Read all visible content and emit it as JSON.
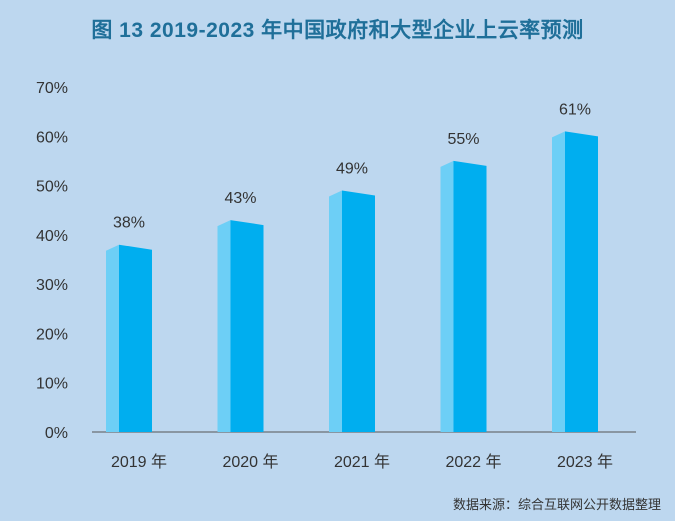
{
  "chart_data": {
    "type": "bar",
    "title": "图 13  2019-2023 年中国政府和大型企业上云率预测",
    "categories": [
      "2019 年",
      "2020 年",
      "2021 年",
      "2022 年",
      "2023 年"
    ],
    "values": [
      38,
      43,
      49,
      55,
      61
    ],
    "data_labels": [
      "38%",
      "43%",
      "49%",
      "55%",
      "61%"
    ],
    "ylim": [
      0,
      70
    ],
    "yticks": [
      "0%",
      "10%",
      "20%",
      "30%",
      "40%",
      "50%",
      "60%",
      "70%"
    ],
    "grid": false,
    "xlabel": "",
    "ylabel": "",
    "colors": {
      "front": "#00aeef",
      "side": "#6dcff6",
      "background": "#bdd7ef",
      "title": "#1f6f99"
    }
  },
  "source": "数据来源：综合互联网公开数据整理"
}
